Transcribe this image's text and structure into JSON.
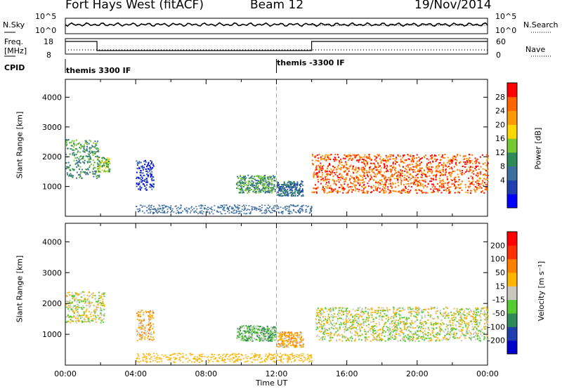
{
  "header": {
    "title": "Fort Hays West (fitACF)",
    "beam": "Beam 12",
    "date": "19/Nov/2014"
  },
  "top_panel": {
    "left_label": "N.Sky",
    "right_label": "N.Search",
    "left_ticks": [
      "10^5",
      "10^0"
    ],
    "right_ticks": [
      "10^5",
      "10^0"
    ]
  },
  "freq_panel": {
    "left_label_line1": "Freq.",
    "left_label_line2": "[MHz]",
    "right_label": "Nave",
    "left_ticks": [
      "18",
      "8"
    ],
    "right_ticks": [
      "60",
      "0"
    ]
  },
  "cpid": {
    "label": "CPID",
    "segments": [
      {
        "text": "themis 3300 IF",
        "start_hour": 0
      },
      {
        "text": "themis -3300 IF",
        "start_hour": 12
      }
    ]
  },
  "chart_data": [
    {
      "type": "heatmap",
      "name": "power",
      "ylabel": "Slant Range [km]",
      "xlabel": "",
      "xlim": [
        0,
        24
      ],
      "ylim": [
        0,
        4600
      ],
      "yticks": [
        1000,
        2000,
        3000,
        4000
      ],
      "colorbar_label": "Power [dB]",
      "colorbar_ticks": [
        "28",
        "24",
        "20",
        "16",
        "12",
        "8",
        "4"
      ],
      "colors": [
        "#0000ff",
        "#1f3faf",
        "#3c6ea0",
        "#2e8b57",
        "#78c832",
        "#ffd700",
        "#ff9900",
        "#ff6600",
        "#ff0000"
      ],
      "regions": [
        {
          "t0": 0.0,
          "t1": 1.9,
          "r0": 1300,
          "r1": 2600,
          "level": 3
        },
        {
          "t0": 1.8,
          "t1": 2.5,
          "r0": 1500,
          "r1": 2000,
          "level": 4
        },
        {
          "t0": 4.0,
          "t1": 5.0,
          "r0": 900,
          "r1": 1900,
          "level": 1
        },
        {
          "t0": 9.7,
          "t1": 11.9,
          "r0": 800,
          "r1": 1400,
          "level": 3
        },
        {
          "t0": 12.0,
          "t1": 13.5,
          "r0": 700,
          "r1": 1200,
          "level": 2
        },
        {
          "t0": 14.0,
          "t1": 24.0,
          "r0": 800,
          "r1": 2100,
          "level": 7
        }
      ]
    },
    {
      "type": "heatmap",
      "name": "velocity",
      "ylabel": "Slant Range [km]",
      "xlabel": "Time UT",
      "xlim": [
        0,
        24
      ],
      "ylim": [
        0,
        4600
      ],
      "yticks": [
        1000,
        2000,
        3000,
        4000
      ],
      "xticks": [
        "00:00",
        "04:00",
        "08:00",
        "12:00",
        "16:00",
        "20:00",
        "00:00"
      ],
      "colorbar_label": "Velocity [m s⁻¹]",
      "colorbar_ticks": [
        "200",
        "100",
        "50",
        "15",
        "-15",
        "-50",
        "-100",
        "-200"
      ],
      "colors": [
        "#0000cd",
        "#1f3faf",
        "#2e8b57",
        "#55cc33",
        "#c8c8c0",
        "#ffb400",
        "#ff7f00",
        "#ff3000",
        "#ff0000"
      ],
      "regions": [
        {
          "t0": 0.0,
          "t1": 2.2,
          "r0": 1400,
          "r1": 2400,
          "level": 4
        },
        {
          "t0": 4.0,
          "t1": 5.0,
          "r0": 800,
          "r1": 1800,
          "level": 5
        },
        {
          "t0": 9.7,
          "t1": 12.0,
          "r0": 800,
          "r1": 1300,
          "level": 3
        },
        {
          "t0": 12.0,
          "t1": 13.5,
          "r0": 600,
          "r1": 1100,
          "level": 5
        },
        {
          "t0": 14.2,
          "t1": 24.0,
          "r0": 800,
          "r1": 1900,
          "level": 4
        }
      ]
    }
  ]
}
